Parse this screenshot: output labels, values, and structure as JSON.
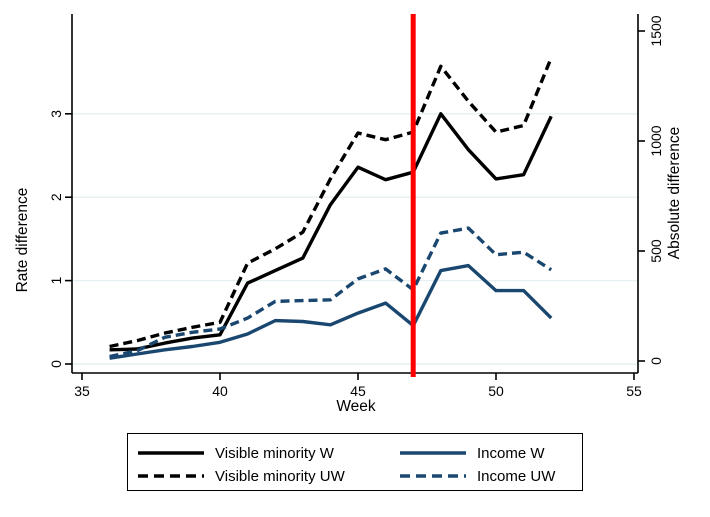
{
  "figure": {
    "background": "#ffffff"
  },
  "colors": {
    "black": "#000000",
    "navy": "#1a476f",
    "grid": "#e6eff2",
    "reference_red": "#ff0000",
    "axis": "#000000"
  },
  "chart_data": {
    "type": "line",
    "title": "",
    "xlabel": "Week",
    "x_range": [
      35,
      55
    ],
    "x_ticks": [
      35,
      40,
      45,
      50,
      55
    ],
    "left_axis": {
      "label": "Rate difference",
      "ticks": [
        0,
        1,
        2,
        3
      ],
      "range": [
        0,
        3.9
      ]
    },
    "right_axis": {
      "label": "Absolute difference",
      "ticks": [
        0,
        500,
        1000,
        1500
      ],
      "range": [
        0,
        1590
      ]
    },
    "grid": "horizontal, at left-axis ticks",
    "legend_position": "bottom",
    "x": [
      36,
      37,
      38,
      39,
      40,
      41,
      42,
      43,
      44,
      45,
      46,
      47,
      48,
      49,
      50,
      51,
      52
    ],
    "series": [
      {
        "name": "Visible minority W",
        "color": "#000000",
        "dash": "solid",
        "values": [
          0.17,
          0.18,
          0.25,
          0.31,
          0.35,
          0.97,
          1.12,
          1.27,
          1.91,
          2.36,
          2.21,
          2.3,
          3.0,
          2.57,
          2.22,
          2.27,
          2.97
        ]
      },
      {
        "name": "Visible minority UW",
        "color": "#000000",
        "dash": "dashed",
        "values": [
          0.21,
          0.28,
          0.37,
          0.44,
          0.5,
          1.21,
          1.38,
          1.58,
          2.22,
          2.77,
          2.69,
          2.78,
          3.57,
          3.15,
          2.78,
          2.86,
          3.67
        ]
      },
      {
        "name": "Income W",
        "color": "#1a476f",
        "dash": "solid",
        "values": [
          0.07,
          0.12,
          0.17,
          0.21,
          0.26,
          0.36,
          0.52,
          0.51,
          0.47,
          0.61,
          0.73,
          0.46,
          1.12,
          1.18,
          0.88,
          0.88,
          0.55
        ]
      },
      {
        "name": "Income UW",
        "color": "#1a476f",
        "dash": "dashed",
        "values": [
          0.09,
          0.16,
          0.32,
          0.38,
          0.42,
          0.55,
          0.75,
          0.76,
          0.77,
          1.02,
          1.14,
          0.89,
          1.57,
          1.63,
          1.31,
          1.34,
          1.13
        ]
      }
    ],
    "reference_line": {
      "axis": "x",
      "value": 47,
      "color": "#ff0000"
    }
  }
}
